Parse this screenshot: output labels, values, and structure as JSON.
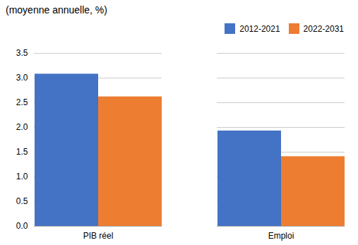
{
  "chart_data": {
    "type": "bar",
    "title": "(moyenne  annuelle, %)",
    "categories": [
      "PIB réel",
      "Emploi"
    ],
    "series": [
      {
        "name": "2012-2021",
        "color": "#4472C4",
        "values": [
          3.08,
          1.93
        ]
      },
      {
        "name": "2022-2031",
        "color": "#ED7D31",
        "values": [
          2.62,
          1.41
        ]
      }
    ],
    "ylim": [
      0,
      3.5
    ],
    "yticks": [
      {
        "value": 0,
        "label": "0.0"
      },
      0.5,
      {
        "value": 1,
        "label": "1.0"
      },
      1.5,
      {
        "value": 2,
        "label": "2.0"
      },
      2.5,
      {
        "value": 3,
        "label": "3.0"
      },
      3.5
    ],
    "grid": true,
    "legend": "top"
  }
}
